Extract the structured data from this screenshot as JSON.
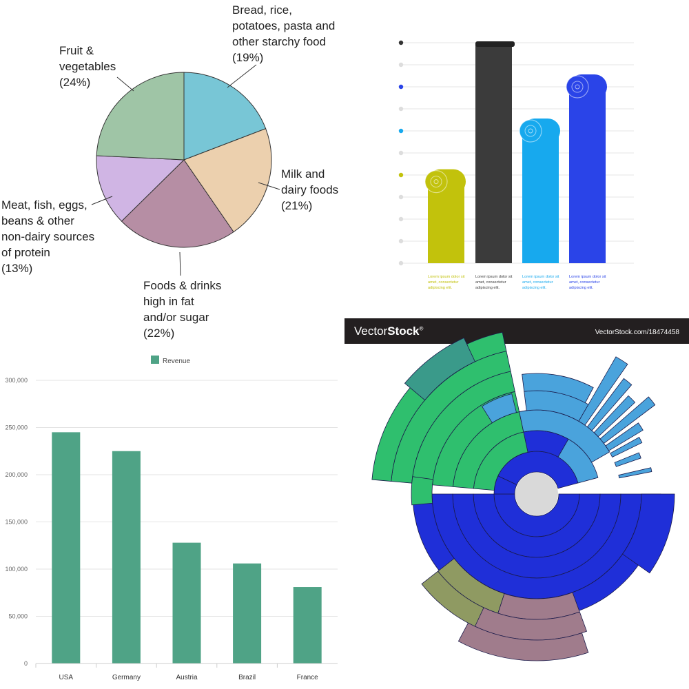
{
  "chart_data": [
    {
      "type": "pie",
      "slices": [
        {
          "label_lines": [
            "Bread, rice,",
            "potatoes, pasta and",
            "other starchy food",
            "(19%)"
          ],
          "value": 19,
          "color": "#78c6d6"
        },
        {
          "label_lines": [
            "Milk and",
            "dairy foods",
            "(21%)"
          ],
          "value": 21,
          "color": "#ecd0ae"
        },
        {
          "label_lines": [
            "Foods & drinks",
            "high in fat",
            "and/or sugar",
            "(22%)"
          ],
          "value": 22,
          "color": "#b68ea4"
        },
        {
          "label_lines": [
            "Meat, fish, eggs,",
            "beans & other",
            "non-dairy sources",
            "of protein",
            "(13%)"
          ],
          "value": 13,
          "color": "#d0b5e4"
        },
        {
          "label_lines": [
            "Fruit &",
            "vegetables",
            "(24%)"
          ],
          "value": 24,
          "color": "#9fc5a6"
        }
      ]
    },
    {
      "type": "bar",
      "style": "ribbon",
      "values": [
        37,
        100,
        60,
        80
      ],
      "colors": [
        "#c2c20c",
        "#3b3b3b",
        "#17a9ee",
        "#2a44e8"
      ],
      "captions": [
        "Lorem ipsum dolor sit amet, consectetur adipiscing elit.",
        "Lorem ipsum dolor sit amet, consectetur adipiscing elit.",
        "Lorem ipsum dolor sit amet, consectetur adipiscing elit.",
        "Lorem ipsum dolor sit amet, consectetur adipiscing elit."
      ],
      "grid": true
    },
    {
      "type": "bar",
      "legend": "Revenue",
      "legend_position": "top-center",
      "color": "#4fa386",
      "categories": [
        "USA",
        "Germany",
        "Austria",
        "Brazil",
        "France"
      ],
      "values": [
        245000,
        225000,
        128000,
        106000,
        81000
      ],
      "ylim": [
        0,
        300000
      ],
      "yticks": [
        "0",
        "50,000",
        "100,000",
        "150,000",
        "200,000",
        "250,000",
        "300,000"
      ],
      "grid": true
    },
    {
      "type": "sunburst",
      "watermark": {
        "brand_regular": "Vector",
        "brand_bold": "Stock",
        "reg": "®",
        "url": "VectorStock.com/18474458"
      },
      "colors": {
        "blue": "#1f2fd8",
        "green": "#2fbf6e",
        "teal": "#3a9a8a",
        "sky": "#4aa3dc",
        "olive": "#8f9a62",
        "mauve": "#a07c8c",
        "center": "#d9d9d9"
      }
    }
  ]
}
